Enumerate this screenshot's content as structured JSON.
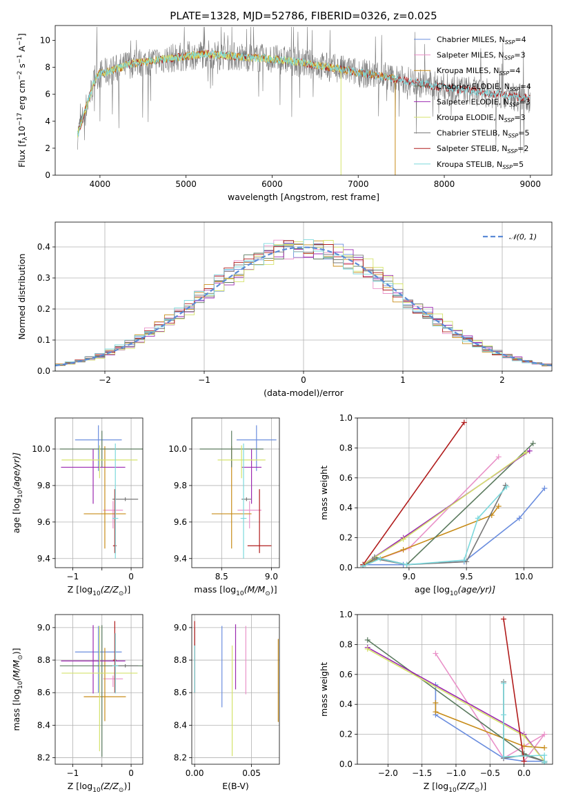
{
  "figure": {
    "title": "PLATE=1328, MJD=52786, FIBERID=0326, z=0.025",
    "model_colors": {
      "Chabrier MILES": "#6a8dde",
      "Salpeter MILES": "#e991c8",
      "Kroupa MILES": "#c78b17",
      "Chabrier ELODIE": "#5a7a5e",
      "Salpeter ELODIE": "#9b27b0",
      "Kroupa ELODIE": "#d5e36a",
      "Chabrier STELIB": "#777777",
      "Salpeter STELIB": "#b01b1b",
      "Kroupa STELIB": "#7bd8dc"
    }
  },
  "chart_data": [
    {
      "id": "spectrum",
      "type": "line",
      "title": "PLATE=1328, MJD=52786, FIBERID=0326, z=0.025",
      "xlabel": "wavelength [Angstrom, rest frame]",
      "ylabel": "Flux [f",
      "xlim": [
        3480,
        9250
      ],
      "ylim": [
        0,
        11.1
      ],
      "xticks": [
        4000,
        5000,
        6000,
        7000,
        8000,
        9000
      ],
      "yticks": [
        0,
        2,
        4,
        6,
        8,
        10
      ],
      "grid": false,
      "legend_position": "top-right",
      "legend": [
        {
          "label": "Chabrier MILES, N",
          "sub": "SSP",
          "val": "=4",
          "color": "#6a8dde"
        },
        {
          "label": "Salpeter MILES, N",
          "sub": "SSP",
          "val": "=3",
          "color": "#e991c8"
        },
        {
          "label": "Kroupa MILES, N",
          "sub": "SSP",
          "val": "=4",
          "color": "#c78b17"
        },
        {
          "label": "Chabrier ELODIE, N",
          "sub": "SSP",
          "val": "=4",
          "color": "#5a7a5e"
        },
        {
          "label": "Salpeter ELODIE, N",
          "sub": "SSP",
          "val": "=3",
          "color": "#9b27b0"
        },
        {
          "label": "Kroupa ELODIE, N",
          "sub": "SSP",
          "val": "=3",
          "color": "#d5e36a"
        },
        {
          "label": "Chabrier STELIB, N",
          "sub": "SSP",
          "val": "=5",
          "color": "#777777"
        },
        {
          "label": "Salpeter STELIB, N",
          "sub": "SSP",
          "val": "=2",
          "color": "#b01b1b"
        },
        {
          "label": "Kroupa STELIB, N",
          "sub": "SSP",
          "val": "=5",
          "color": "#7bd8dc"
        }
      ],
      "series_ranges": [
        {
          "name": "Chabrier STELIB",
          "color": "#777777",
          "x": [
            3740,
            9000
          ]
        },
        {
          "name": "Salpeter STELIB",
          "color": "#b01b1b",
          "x": [
            3740,
            9000
          ]
        },
        {
          "name": "Kroupa MILES",
          "color": "#c78b17",
          "x": [
            3740,
            7430
          ]
        },
        {
          "name": "Kroupa ELODIE",
          "color": "#d5e36a",
          "x": [
            3740,
            6800
          ]
        },
        {
          "name": "Kroupa STELIB",
          "color": "#7bd8dc",
          "x": [
            3740,
            9000
          ]
        }
      ]
    },
    {
      "id": "residuals",
      "type": "bar",
      "xlabel": "(data-model)/error",
      "ylabel": "Normed distribution",
      "xlim": [
        -2.5,
        2.5
      ],
      "ylim": [
        0,
        0.48
      ],
      "xticks": [
        -2,
        -1,
        0,
        1,
        2
      ],
      "yticks": [
        0.0,
        0.1,
        0.2,
        0.3,
        0.4
      ],
      "grid": true,
      "legend_position": "top-right",
      "legend": [
        {
          "label": "𝒩(0, 1)",
          "color": "#5b8ad6",
          "style": "dashed"
        }
      ],
      "bin_width": 0.1,
      "reference_curve": "normal(0,1)"
    },
    {
      "id": "age_vs_Z",
      "type": "scatter",
      "xlabel": "Z [log",
      "xlabel_tail": "(Z/Z",
      "ylabel": "age  [log",
      "ylabel_tail": "(age/yr)]",
      "xlim": [
        -1.3,
        0.2
      ],
      "ylim": [
        9.35,
        10.17
      ],
      "xticks": [
        -1,
        -0.5,
        0
      ],
      "xticklabels": [
        "−1",
        "",
        "0"
      ],
      "yticks": [
        9.4,
        9.6,
        9.8,
        10.0
      ],
      "grid": true,
      "points": [
        {
          "x": -0.56,
          "xerr": 0.4,
          "y": 10.05,
          "yerr": [
            0.17,
            0.08
          ],
          "color": "#6a8dde"
        },
        {
          "x": -0.31,
          "xerr": 0.17,
          "y": 9.665,
          "yerr": [
            0.1,
            0.05
          ],
          "color": "#e991c8"
        },
        {
          "x": -0.45,
          "xerr": 0.36,
          "y": 9.645,
          "yerr": [
            0.19,
            0.37
          ],
          "color": "#c78b17"
        },
        {
          "x": -0.5,
          "xerr": 0.72,
          "y": 10.0,
          "yerr": [
            0.1,
            0.1
          ],
          "color": "#5a7a5e"
        },
        {
          "x": -0.65,
          "xerr": 0.55,
          "y": 9.9,
          "yerr": [
            0.2,
            0.1
          ],
          "color": "#9b27b0"
        },
        {
          "x": -0.54,
          "xerr": 0.65,
          "y": 9.94,
          "yerr": [
            0.1,
            0.08
          ],
          "color": "#d5e36a"
        },
        {
          "x": -0.1,
          "xerr": 0.22,
          "y": 9.725,
          "yerr": [
            0.01,
            0.01
          ],
          "color": "#777777"
        },
        {
          "x": -0.28,
          "xerr": 0.03,
          "y": 9.47,
          "yerr": [
            0.04,
            0.31
          ],
          "color": "#b01b1b"
        },
        {
          "x": -0.27,
          "xerr": 0.05,
          "y": 9.62,
          "yerr": [
            0.22,
            0.41
          ],
          "color": "#7bd8dc"
        }
      ]
    },
    {
      "id": "age_vs_mass",
      "type": "scatter",
      "xlabel": "mass [log",
      "xlabel_tail": "(M/M",
      "xlim": [
        8.2,
        9.08
      ],
      "ylim": [
        9.35,
        10.17
      ],
      "xticks": [
        8.5,
        9.0
      ],
      "yticks": [
        9.4,
        9.6,
        9.8,
        10.0
      ],
      "grid": true,
      "points": [
        {
          "x": 8.85,
          "xerr": 0.2,
          "y": 10.05,
          "yerr": [
            0.17,
            0.08
          ],
          "color": "#6a8dde"
        },
        {
          "x": 8.78,
          "xerr": 0.12,
          "y": 9.665,
          "yerr": [
            0.1,
            0.05
          ],
          "color": "#e991c8"
        },
        {
          "x": 8.6,
          "xerr": 0.2,
          "y": 9.645,
          "yerr": [
            0.19,
            0.37
          ],
          "color": "#c78b17"
        },
        {
          "x": 8.6,
          "xerr": 0.32,
          "y": 10.0,
          "yerr": [
            0.1,
            0.1
          ],
          "color": "#5a7a5e"
        },
        {
          "x": 8.8,
          "xerr": 0.1,
          "y": 9.9,
          "yerr": [
            0.2,
            0.1
          ],
          "color": "#9b27b0"
        },
        {
          "x": 8.7,
          "xerr": 0.24,
          "y": 9.94,
          "yerr": [
            0.1,
            0.08
          ],
          "color": "#d5e36a"
        },
        {
          "x": 8.75,
          "xerr": 0.05,
          "y": 9.725,
          "yerr": [
            0.01,
            0.01
          ],
          "color": "#777777"
        },
        {
          "x": 8.88,
          "xerr": 0.12,
          "y": 9.47,
          "yerr": [
            0.04,
            0.31
          ],
          "color": "#b01b1b"
        },
        {
          "x": 8.72,
          "xerr": 0.03,
          "y": 9.62,
          "yerr": [
            0.22,
            0.41
          ],
          "color": "#7bd8dc"
        }
      ]
    },
    {
      "id": "weight_vs_age",
      "type": "line",
      "xlabel": "age  [log",
      "xlabel_tail": "(age/yr)]",
      "ylabel": "mass weight",
      "xlim": [
        8.55,
        10.25
      ],
      "ylim": [
        0,
        1.0
      ],
      "xticks": [
        9.0,
        9.5,
        10.0
      ],
      "yticks": [
        0.0,
        0.2,
        0.4,
        0.6,
        0.8,
        1.0
      ],
      "grid": true,
      "series": [
        {
          "name": "Chabrier MILES",
          "color": "#6a8dde",
          "x": [
            8.6,
            8.95,
            9.48,
            9.96,
            10.18
          ],
          "y": [
            0.02,
            0.02,
            0.04,
            0.33,
            0.53
          ]
        },
        {
          "name": "Salpeter MILES",
          "color": "#e991c8",
          "x": [
            8.6,
            9.0,
            9.78
          ],
          "y": [
            0.02,
            0.13,
            0.74
          ]
        },
        {
          "name": "Kroupa MILES",
          "color": "#c78b17",
          "x": [
            8.6,
            8.95,
            9.72,
            9.78
          ],
          "y": [
            0.02,
            0.12,
            0.35,
            0.41
          ]
        },
        {
          "name": "Chabrier ELODIE",
          "color": "#5a7a5e",
          "x": [
            8.6,
            8.7,
            8.98,
            10.08
          ],
          "y": [
            0.01,
            0.07,
            0.02,
            0.83
          ]
        },
        {
          "name": "Salpeter ELODIE",
          "color": "#9b27b0",
          "x": [
            8.6,
            8.95,
            10.05
          ],
          "y": [
            0.02,
            0.2,
            0.78
          ]
        },
        {
          "name": "Kroupa ELODIE",
          "color": "#d5e36a",
          "x": [
            8.6,
            8.95,
            10.02
          ],
          "y": [
            0.02,
            0.19,
            0.77
          ]
        },
        {
          "name": "Chabrier STELIB",
          "color": "#777777",
          "x": [
            8.6,
            8.7,
            8.98,
            9.5,
            9.84
          ],
          "y": [
            0.01,
            0.06,
            0.02,
            0.04,
            0.55
          ]
        },
        {
          "name": "Salpeter STELIB",
          "color": "#b01b1b",
          "x": [
            8.6,
            9.48
          ],
          "y": [
            0.02,
            0.97
          ]
        },
        {
          "name": "Kroupa STELIB",
          "color": "#7bd8dc",
          "x": [
            8.6,
            8.75,
            8.98,
            9.48,
            9.6,
            9.85
          ],
          "y": [
            0.01,
            0.06,
            0.02,
            0.05,
            0.33,
            0.54
          ]
        }
      ]
    },
    {
      "id": "mass_vs_Z",
      "type": "scatter",
      "xlabel": "Z [log",
      "xlabel_tail": "(Z/Z",
      "ylabel": "mass [log",
      "ylabel_tail": "(M/M",
      "xlim": [
        -1.3,
        0.2
      ],
      "ylim": [
        8.16,
        9.08
      ],
      "xticks": [
        -1,
        -0.5,
        0
      ],
      "xticklabels": [
        "−1",
        "",
        "0"
      ],
      "yticks": [
        8.2,
        8.4,
        8.6,
        8.8,
        9.0
      ],
      "grid": true,
      "points": [
        {
          "x": -0.56,
          "xerr": 0.4,
          "y": 8.85,
          "yerr": [
            0.25,
            0.16
          ],
          "color": "#6a8dde"
        },
        {
          "x": -0.31,
          "xerr": 0.17,
          "y": 8.685,
          "yerr": [
            0.05,
            0.02
          ],
          "color": "#e991c8"
        },
        {
          "x": -0.45,
          "xerr": 0.36,
          "y": 8.575,
          "yerr": [
            0.15,
            0.3
          ],
          "color": "#c78b17"
        },
        {
          "x": -0.5,
          "xerr": 0.72,
          "y": 8.765,
          "yerr": [
            0.56,
            0.25
          ],
          "color": "#5a7a5e"
        },
        {
          "x": -0.65,
          "xerr": 0.55,
          "y": 8.795,
          "yerr": [
            0.2,
            0.22
          ],
          "color": "#9b27b0"
        },
        {
          "x": -0.54,
          "xerr": 0.65,
          "y": 8.72,
          "yerr": [
            0.48,
            0.29
          ],
          "color": "#d5e36a"
        },
        {
          "x": -0.1,
          "xerr": 0.22,
          "y": 8.765,
          "yerr": [
            0.01,
            0.01
          ],
          "color": "#777777"
        },
        {
          "x": -0.28,
          "xerr": 0.03,
          "y": 8.8,
          "yerr": [
            0.2,
            0.24
          ],
          "color": "#b01b1b"
        },
        {
          "x": -0.27,
          "xerr": 0.05,
          "y": 8.765,
          "yerr": [
            0.17,
            0.2
          ],
          "color": "#7bd8dc"
        }
      ]
    },
    {
      "id": "mass_vs_ebv",
      "type": "scatter",
      "xlabel": "E(B-V)",
      "xlim": [
        -0.0025,
        0.0745
      ],
      "ylim": [
        8.16,
        9.08
      ],
      "xticks": [
        0.0,
        0.05
      ],
      "xticklabels": [
        "0.00",
        "0.05"
      ],
      "yticks": [
        8.2,
        8.4,
        8.6,
        8.8,
        9.0
      ],
      "grid": true,
      "points": [
        {
          "x": 0.024,
          "xerr": 0,
          "y": 8.76,
          "yerr": [
            0.25,
            0.25
          ],
          "color": "#6a8dde"
        },
        {
          "x": 0.045,
          "xerr": 0,
          "y": 8.77,
          "yerr": [
            0.18,
            0.24
          ],
          "color": "#e991c8"
        },
        {
          "x": 0.0735,
          "xerr": 0,
          "y": 8.68,
          "yerr": [
            0.26,
            0.25
          ],
          "color": "#c78b17"
        },
        {
          "x": 0.0,
          "xerr": 0,
          "y": 8.75,
          "yerr": [
            0.15,
            0.15
          ],
          "color": "#5a7a5e"
        },
        {
          "x": 0.036,
          "xerr": 0,
          "y": 8.82,
          "yerr": [
            0.2,
            0.2
          ],
          "color": "#9b27b0"
        },
        {
          "x": 0.033,
          "xerr": 0,
          "y": 8.56,
          "yerr": [
            0.35,
            0.33
          ],
          "color": "#d5e36a"
        },
        {
          "x": 0.0,
          "xerr": 0,
          "y": 8.8,
          "yerr": [
            0.2,
            0.2
          ],
          "color": "#777777"
        },
        {
          "x": 0.0,
          "xerr": 0,
          "y": 8.82,
          "yerr": [
            0.22,
            0.22
          ],
          "color": "#b01b1b"
        },
        {
          "x": 0.0,
          "xerr": 0,
          "y": 8.75,
          "yerr": [
            0.15,
            0.14
          ],
          "color": "#7bd8dc"
        }
      ]
    },
    {
      "id": "weight_vs_Z",
      "type": "line",
      "xlabel": "Z [log",
      "xlabel_tail": "(Z/Z",
      "ylabel": "mass weight",
      "xlim": [
        -2.45,
        0.42
      ],
      "ylim": [
        0,
        1.0
      ],
      "xticks": [
        -2.0,
        -1.5,
        -1.0,
        -0.5,
        0.0
      ],
      "xticklabels": [
        "−2.0",
        "−1.5",
        "−1.0",
        "−0.5",
        "0.0"
      ],
      "yticks": [
        0.0,
        0.2,
        0.4,
        0.6,
        0.8,
        1.0
      ],
      "grid": true,
      "series": [
        {
          "name": "Chabrier MILES",
          "color": "#6a8dde",
          "x": [
            -1.3,
            -1.3,
            -0.3,
            0.0,
            0.3
          ],
          "y": [
            0.53,
            0.33,
            0.04,
            0.02,
            0.02
          ]
        },
        {
          "name": "Salpeter MILES",
          "color": "#e991c8",
          "x": [
            -1.3,
            -0.3,
            0.3,
            0.0
          ],
          "y": [
            0.74,
            0.04,
            0.2,
            0.02
          ]
        },
        {
          "name": "Kroupa MILES",
          "color": "#c78b17",
          "x": [
            -1.3,
            -1.3,
            0.0,
            0.3
          ],
          "y": [
            0.41,
            0.35,
            0.12,
            0.11
          ]
        },
        {
          "name": "Chabrier ELODIE",
          "color": "#5a7a5e",
          "x": [
            -2.3,
            0.0,
            0.3,
            0.3
          ],
          "y": [
            0.83,
            0.07,
            0.02,
            0.01
          ]
        },
        {
          "name": "Salpeter ELODIE",
          "color": "#9b27b0",
          "x": [
            -2.3,
            0.0,
            0.3
          ],
          "y": [
            0.78,
            0.2,
            0.02
          ]
        },
        {
          "name": "Kroupa ELODIE",
          "color": "#d5e36a",
          "x": [
            -2.3,
            0.0,
            0.3
          ],
          "y": [
            0.77,
            0.19,
            0.02
          ]
        },
        {
          "name": "Chabrier STELIB",
          "color": "#777777",
          "x": [
            -0.3,
            -0.3,
            0.0,
            0.3,
            0.3
          ],
          "y": [
            0.55,
            0.04,
            0.06,
            0.02,
            0.01
          ]
        },
        {
          "name": "Salpeter STELIB",
          "color": "#b01b1b",
          "x": [
            -0.3,
            0.0
          ],
          "y": [
            0.97,
            0.02
          ]
        },
        {
          "name": "Kroupa STELIB",
          "color": "#7bd8dc",
          "x": [
            -0.3,
            -0.3,
            -0.3,
            0.3,
            0.3,
            0.3
          ],
          "y": [
            0.54,
            0.33,
            0.05,
            0.06,
            0.02,
            0.01
          ]
        }
      ]
    }
  ]
}
